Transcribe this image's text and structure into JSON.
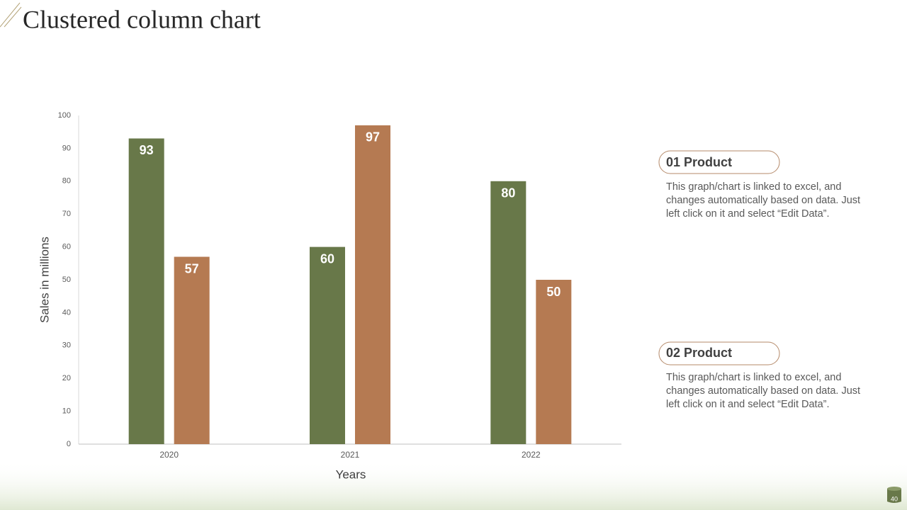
{
  "title": "Clustered column chart",
  "chart_data": {
    "type": "bar",
    "categories": [
      "2020",
      "2021",
      "2022"
    ],
    "series": [
      {
        "name": "01 Product",
        "color": "#687849",
        "values": [
          93,
          60,
          80
        ]
      },
      {
        "name": "02 Product",
        "color": "#b57a52",
        "values": [
          57,
          97,
          50
        ]
      }
    ],
    "ylim": [
      0,
      100
    ],
    "yticks": [
      0,
      10,
      20,
      30,
      40,
      50,
      60,
      70,
      80,
      90,
      100
    ],
    "ylabel": "Sales in millions",
    "xlabel": "Years",
    "grid": false
  },
  "descriptions": [
    "This graph/chart is linked to excel, and changes automatically based on data. Just left click on it and select “Edit Data”.",
    "This graph/chart is linked to excel, and changes automatically based on data. Just left click on it and select “Edit Data”."
  ],
  "slide_number": "40"
}
